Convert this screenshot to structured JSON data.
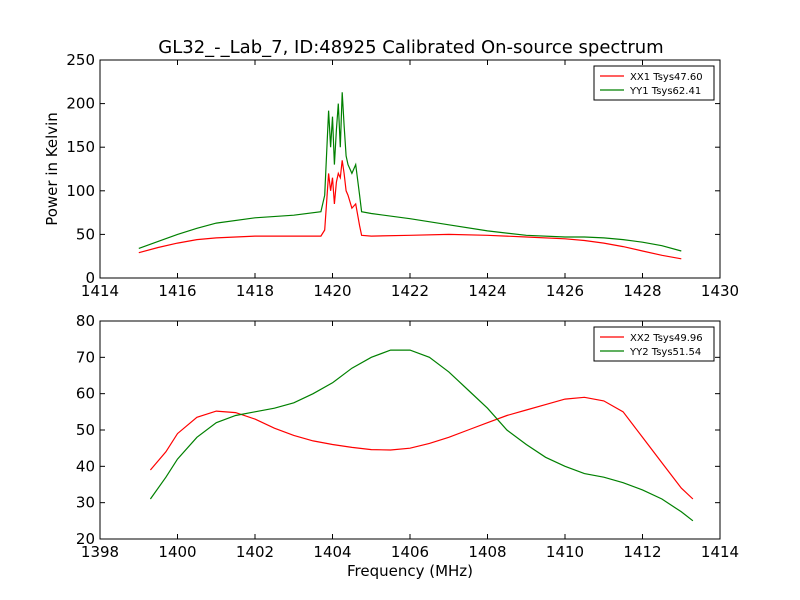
{
  "figure": {
    "title": "GL32_-_Lab_7, ID:48925 Calibrated On-source spectrum",
    "xlabel": "Frequency (MHz)"
  },
  "chart_data": [
    {
      "type": "line",
      "ylabel": "Power in Kelvin",
      "xlim": [
        1414,
        1430
      ],
      "ylim": [
        0,
        250
      ],
      "xticks": [
        "1414",
        "1416",
        "1418",
        "1420",
        "1422",
        "1424",
        "1426",
        "1428",
        "1430"
      ],
      "yticks": [
        "0",
        "50",
        "100",
        "150",
        "200",
        "250"
      ],
      "xtick_values": [
        1414,
        1416,
        1418,
        1420,
        1422,
        1424,
        1426,
        1428,
        1430
      ],
      "ytick_values": [
        0,
        50,
        100,
        150,
        200,
        250
      ],
      "legend": "top-right",
      "series": [
        {
          "name": "XX1 Tsys47.60",
          "color": "#ff0000",
          "x": [
            1415.0,
            1415.5,
            1416.0,
            1416.5,
            1417.0,
            1418.0,
            1419.0,
            1419.7,
            1419.8,
            1419.9,
            1419.95,
            1420.0,
            1420.05,
            1420.1,
            1420.15,
            1420.2,
            1420.25,
            1420.3,
            1420.35,
            1420.4,
            1420.5,
            1420.6,
            1420.7,
            1420.75,
            1421.0,
            1422.0,
            1423.0,
            1424.0,
            1425.0,
            1426.0,
            1426.5,
            1427.0,
            1427.5,
            1428.0,
            1428.5,
            1429.0
          ],
          "y": [
            29,
            35,
            40,
            44,
            46,
            48,
            48,
            48,
            55,
            120,
            100,
            115,
            85,
            110,
            120,
            115,
            135,
            120,
            100,
            95,
            80,
            85,
            60,
            49,
            48,
            49,
            50,
            49,
            47,
            45,
            43,
            40,
            36,
            31,
            26,
            22
          ]
        },
        {
          "name": "YY1 Tsys62.41",
          "color": "#008000",
          "x": [
            1415.0,
            1415.5,
            1416.0,
            1416.5,
            1417.0,
            1418.0,
            1419.0,
            1419.7,
            1419.8,
            1419.9,
            1419.95,
            1420.0,
            1420.05,
            1420.1,
            1420.15,
            1420.2,
            1420.25,
            1420.3,
            1420.35,
            1420.4,
            1420.5,
            1420.6,
            1420.7,
            1420.75,
            1421.0,
            1422.0,
            1423.0,
            1424.0,
            1425.0,
            1426.0,
            1426.5,
            1427.0,
            1427.5,
            1428.0,
            1428.5,
            1429.0
          ],
          "y": [
            34,
            42,
            50,
            57,
            63,
            69,
            72,
            76,
            95,
            192,
            150,
            185,
            130,
            170,
            200,
            150,
            213,
            175,
            140,
            130,
            120,
            130,
            95,
            76,
            74,
            68,
            61,
            54,
            49,
            47,
            47,
            46,
            44,
            41,
            37,
            31
          ]
        }
      ]
    },
    {
      "type": "line",
      "ylabel": "",
      "xlim": [
        1398,
        1414
      ],
      "ylim": [
        20,
        80
      ],
      "xticks": [
        "1398",
        "1400",
        "1402",
        "1404",
        "1406",
        "1408",
        "1410",
        "1412",
        "1414"
      ],
      "yticks": [
        "20",
        "30",
        "40",
        "50",
        "60",
        "70",
        "80"
      ],
      "xtick_values": [
        1398,
        1400,
        1402,
        1404,
        1406,
        1408,
        1410,
        1412,
        1414
      ],
      "ytick_values": [
        20,
        30,
        40,
        50,
        60,
        70,
        80
      ],
      "legend": "top-right",
      "series": [
        {
          "name": "XX2 Tsys49.96",
          "color": "#ff0000",
          "x": [
            1399.3,
            1399.7,
            1400.0,
            1400.5,
            1401.0,
            1401.5,
            1402.0,
            1402.5,
            1403.0,
            1403.5,
            1404.0,
            1404.5,
            1405.0,
            1405.5,
            1406.0,
            1406.5,
            1407.0,
            1407.5,
            1408.0,
            1408.5,
            1409.0,
            1409.5,
            1410.0,
            1410.5,
            1411.0,
            1411.5,
            1412.0,
            1412.5,
            1413.0,
            1413.3
          ],
          "y": [
            39,
            44,
            49,
            53.5,
            55.2,
            54.8,
            53,
            50.5,
            48.5,
            47,
            46,
            45.2,
            44.6,
            44.5,
            45,
            46.3,
            48,
            50,
            52,
            54,
            55.5,
            57,
            58.5,
            59,
            58,
            55,
            48,
            41,
            34,
            31
          ]
        },
        {
          "name": "YY2 Tsys51.54",
          "color": "#008000",
          "x": [
            1399.3,
            1399.7,
            1400.0,
            1400.5,
            1401.0,
            1401.5,
            1402.0,
            1402.5,
            1403.0,
            1403.5,
            1404.0,
            1404.5,
            1405.0,
            1405.5,
            1406.0,
            1406.5,
            1407.0,
            1407.5,
            1408.0,
            1408.5,
            1409.0,
            1409.5,
            1410.0,
            1410.5,
            1411.0,
            1411.5,
            1412.0,
            1412.5,
            1413.0,
            1413.3
          ],
          "y": [
            31,
            37,
            42,
            48,
            52,
            54,
            55,
            56,
            57.5,
            60,
            63,
            67,
            70,
            72,
            72,
            70,
            66,
            61,
            56,
            50,
            46,
            42.5,
            40,
            38,
            37,
            35.5,
            33.5,
            31,
            27.5,
            25
          ]
        }
      ]
    }
  ]
}
